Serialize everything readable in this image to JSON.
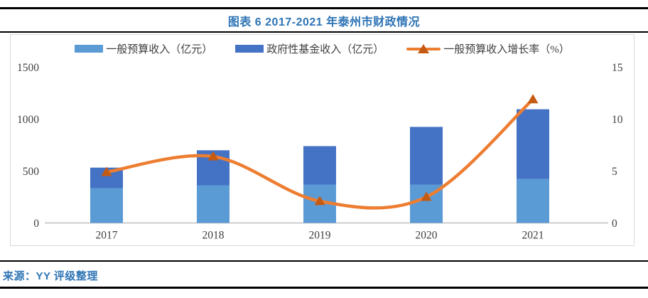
{
  "header": {
    "title": "图表 6 2017-2021 年泰州市财政情况"
  },
  "footer": {
    "source": "来源：YY 评级整理"
  },
  "colors": {
    "title_text": "#2E74B5",
    "source_text": "#2E74B5",
    "rule": "#000000",
    "panel_border": "#D9D9D9",
    "axis_line": "#BFBFBF",
    "tick_text": "#404040",
    "bar_light_blue": "#5B9BD5",
    "bar_dark_blue": "#4472C4",
    "line_orange": "#ED7D31",
    "marker_orange": "#C55A11"
  },
  "chart_data": {
    "type": "bar",
    "subtype": "stacked-bar-with-line",
    "title": "图表 6 2017-2021 年泰州市财政情况",
    "categories": [
      "2017",
      "2018",
      "2019",
      "2020",
      "2021"
    ],
    "series": [
      {
        "name": "一般预算收入（亿元）",
        "type": "bar",
        "stack": "fiscal",
        "color": "#5B9BD5",
        "values": [
          335,
          363,
          370,
          370,
          425
        ]
      },
      {
        "name": "政府性基金收入（亿元）",
        "type": "bar",
        "stack": "fiscal",
        "color": "#4472C4",
        "values": [
          198,
          337,
          370,
          555,
          670
        ]
      }
    ],
    "line": {
      "name": "一般预算收入增长率（%）",
      "type": "line",
      "axis": "right",
      "color": "#ED7D31",
      "marker": "triangle-up",
      "marker_color": "#C55A11",
      "values": [
        4.9,
        6.4,
        2.1,
        2.5,
        11.9
      ]
    },
    "left_axis": {
      "range": [
        0,
        1500
      ],
      "ticks": [
        0,
        500,
        1000,
        1500
      ]
    },
    "right_axis": {
      "range": [
        0,
        15
      ],
      "ticks": [
        0,
        5,
        10,
        15
      ]
    },
    "grid": false,
    "legend_position": "top-center"
  }
}
